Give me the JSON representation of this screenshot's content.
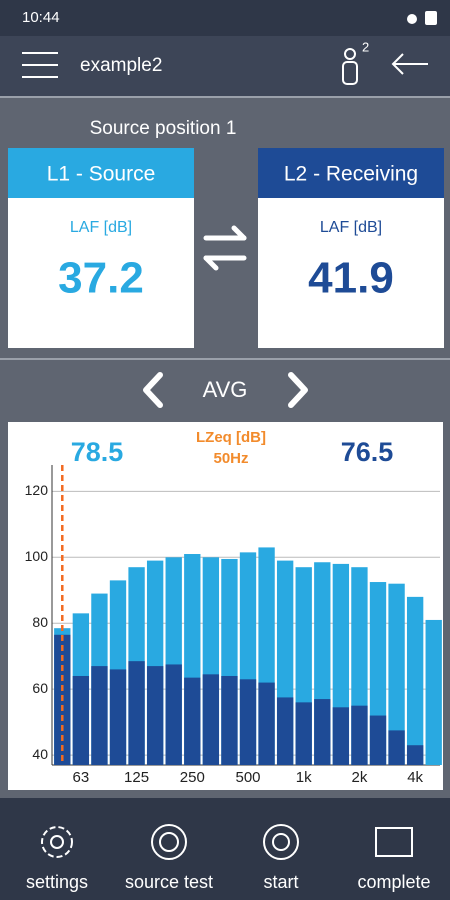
{
  "status_bar": {
    "time": "10:44"
  },
  "app_bar": {
    "title": "example2",
    "badge": "2"
  },
  "position": "Source position 1",
  "cards": [
    {
      "title": "L1 - Source",
      "unit": "LAF [dB]",
      "value": "37.2"
    },
    {
      "title": "L2 - Receiving",
      "unit": "LAF [dB]",
      "value": "41.9"
    }
  ],
  "mode": "AVG",
  "chart_data": {
    "type": "bar",
    "cursor": {
      "label": "LZeq [dB]",
      "band": "50Hz",
      "values": [
        78.5,
        76.5
      ]
    },
    "categories": [
      null,
      "63",
      null,
      null,
      "125",
      null,
      null,
      "250",
      null,
      null,
      "500",
      null,
      null,
      "1k",
      null,
      null,
      "2k",
      null,
      null,
      "4k",
      null
    ],
    "series": [
      {
        "color": "#29a9e1",
        "values": [
          78.5,
          83,
          89,
          93,
          97,
          99,
          100,
          101,
          100,
          99.5,
          101.5,
          103,
          99,
          97,
          98.5,
          98,
          97,
          92.5,
          92,
          88,
          81
        ]
      },
      {
        "color": "#1e4b96",
        "values": [
          76.5,
          64,
          67,
          66,
          68.5,
          67,
          67.5,
          63.5,
          64.5,
          64,
          63,
          62,
          57.5,
          56,
          57,
          54.5,
          55,
          52,
          47.5,
          43,
          null
        ]
      }
    ],
    "ylim": [
      37,
      128
    ],
    "yticks": [
      40,
      60,
      80,
      100,
      120
    ],
    "grid": true
  },
  "nav": [
    "settings",
    "source test",
    "start",
    "complete"
  ]
}
